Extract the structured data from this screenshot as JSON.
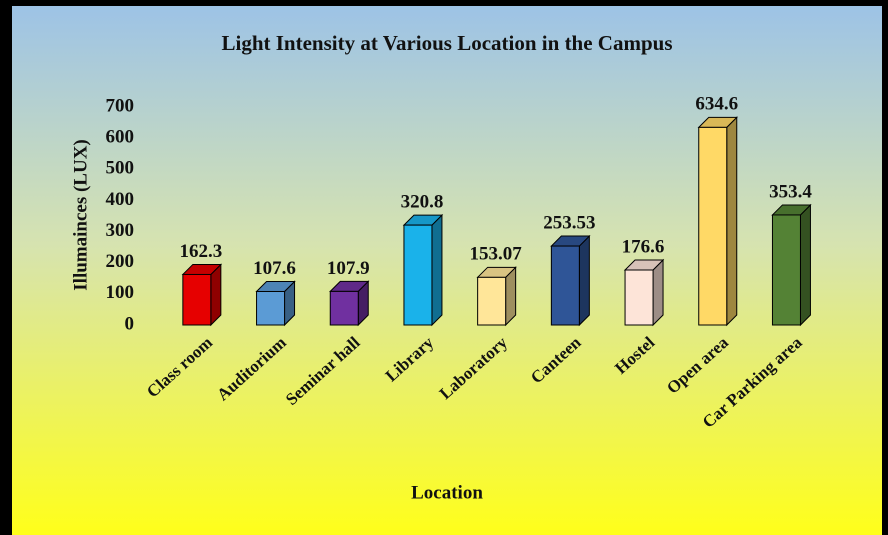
{
  "chart_data": {
    "type": "bar3d",
    "title": "Light Intensity at Various Location in the Campus",
    "x_label": "Location",
    "y_label": "Illumainces (LUX)",
    "categories": [
      "Class room",
      "Auditorium",
      "Seminar hall",
      "Library",
      "Laboratory",
      "Canteen",
      "Hostel",
      "Open area",
      "Car Parking area"
    ],
    "values": [
      162.3,
      107.6,
      107.9,
      320.8,
      153.07,
      253.53,
      176.6,
      634.6,
      353.4
    ],
    "colors": [
      "#e60000",
      "#5b9bd5",
      "#7030a0",
      "#1ab2ea",
      "#ffe699",
      "#2f5597",
      "#fde4d8",
      "#ffd966",
      "#548235"
    ],
    "ylim": [
      0,
      700
    ],
    "yticks": [
      0,
      100,
      200,
      300,
      400,
      500,
      600,
      700
    ],
    "grid": false
  }
}
